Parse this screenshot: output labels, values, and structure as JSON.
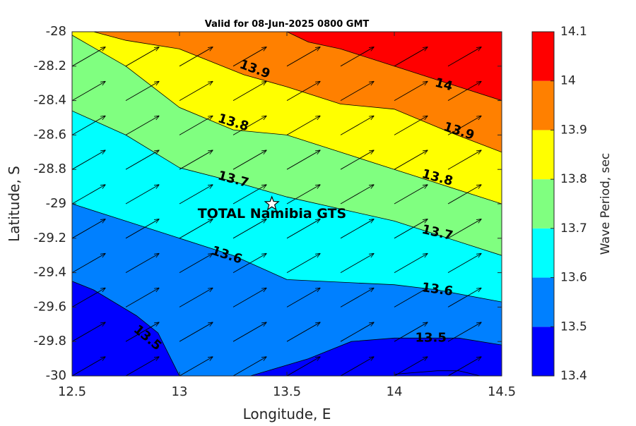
{
  "chart_data": {
    "type": "contour",
    "title": "Valid for 08-Jun-2025 0800 GMT",
    "xlabel": "Longitude, E",
    "ylabel": "Latitude, S",
    "xlim": [
      12.5,
      14.5
    ],
    "ylim": [
      -30,
      -28
    ],
    "x_ticks": [
      "12.5",
      "13",
      "13.5",
      "14",
      "14.5"
    ],
    "y_ticks": [
      "-28",
      "-28.2",
      "-28.4",
      "-28.6",
      "-28.8",
      "-29",
      "-29.2",
      "-29.4",
      "-29.6",
      "-29.8",
      "-30"
    ],
    "colorbar": {
      "label": "Wave Period, sec",
      "levels": [
        "13.4",
        "13.5",
        "13.6",
        "13.7",
        "13.8",
        "13.9",
        "14",
        "14.1"
      ],
      "colors": [
        "#0000ff",
        "#0080ff",
        "#00ffff",
        "#80ff80",
        "#ffff00",
        "#ff8000",
        "#ff0000"
      ]
    },
    "contour_lines": [
      {
        "level": 13.5,
        "points": [
          [
            12.5,
            -29.45
          ],
          [
            12.6,
            -29.5
          ],
          [
            12.8,
            -29.65
          ],
          [
            12.9,
            -29.75
          ],
          [
            13.0,
            -30.0
          ]
        ]
      },
      {
        "level": 13.5,
        "points": [
          [
            13.33,
            -30.0
          ],
          [
            13.6,
            -29.9
          ],
          [
            13.8,
            -29.8
          ],
          [
            14.0,
            -29.78
          ],
          [
            14.3,
            -29.78
          ],
          [
            14.5,
            -29.82
          ]
        ]
      },
      {
        "level": 13.6,
        "points": [
          [
            12.5,
            -29.0
          ],
          [
            12.75,
            -29.1
          ],
          [
            13.0,
            -29.2
          ],
          [
            13.25,
            -29.3
          ],
          [
            13.5,
            -29.44
          ],
          [
            14.0,
            -29.47
          ],
          [
            14.2,
            -29.5
          ],
          [
            14.5,
            -29.57
          ]
        ]
      },
      {
        "level": 13.7,
        "points": [
          [
            12.5,
            -28.46
          ],
          [
            12.75,
            -28.6
          ],
          [
            13.0,
            -28.79
          ],
          [
            13.25,
            -28.87
          ],
          [
            13.5,
            -28.96
          ],
          [
            14.0,
            -29.1
          ],
          [
            14.25,
            -29.2
          ],
          [
            14.5,
            -29.3
          ]
        ]
      },
      {
        "level": 13.8,
        "points": [
          [
            12.5,
            -28.02
          ],
          [
            12.75,
            -28.2
          ],
          [
            13.0,
            -28.44
          ],
          [
            13.25,
            -28.57
          ],
          [
            13.5,
            -28.6
          ],
          [
            13.75,
            -28.7
          ],
          [
            14.0,
            -28.8
          ],
          [
            14.25,
            -28.9
          ],
          [
            14.5,
            -29.0
          ]
        ]
      },
      {
        "level": 13.9,
        "points": [
          [
            12.6,
            -28.0
          ],
          [
            12.75,
            -28.05
          ],
          [
            13.0,
            -28.1
          ],
          [
            13.3,
            -28.25
          ],
          [
            13.5,
            -28.32
          ],
          [
            13.75,
            -28.42
          ],
          [
            14.0,
            -28.45
          ],
          [
            14.25,
            -28.58
          ],
          [
            14.5,
            -28.7
          ]
        ]
      },
      {
        "level": 14.0,
        "points": [
          [
            13.5,
            -28.0
          ],
          [
            13.6,
            -28.06
          ],
          [
            13.75,
            -28.1
          ],
          [
            14.0,
            -28.2
          ],
          [
            14.25,
            -28.3
          ],
          [
            14.5,
            -28.4
          ]
        ]
      }
    ],
    "contour_labels": [
      {
        "text": "13.9",
        "x": 13.35,
        "y": -28.22,
        "angle": 20
      },
      {
        "text": "14",
        "x": 14.23,
        "y": -28.31,
        "angle": 15
      },
      {
        "text": "13.8",
        "x": 13.25,
        "y": -28.53,
        "angle": 17
      },
      {
        "text": "13.9",
        "x": 14.3,
        "y": -28.58,
        "angle": 18
      },
      {
        "text": "13.7",
        "x": 13.25,
        "y": -28.86,
        "angle": 15
      },
      {
        "text": "13.8",
        "x": 14.2,
        "y": -28.85,
        "angle": 15
      },
      {
        "text": "13.7",
        "x": 14.2,
        "y": -29.17,
        "angle": 13
      },
      {
        "text": "13.6",
        "x": 13.22,
        "y": -29.3,
        "angle": 18
      },
      {
        "text": "13.6",
        "x": 14.2,
        "y": -29.5,
        "angle": 8
      },
      {
        "text": "13.5",
        "x": 12.85,
        "y": -29.78,
        "angle": 40
      },
      {
        "text": "13.5",
        "x": 14.17,
        "y": -29.78,
        "angle": 0
      }
    ],
    "vector_field": {
      "x": [
        12.5,
        12.75,
        13.0,
        13.25,
        13.5,
        13.75,
        14.0,
        14.25
      ],
      "y": [
        -28.2,
        -28.4,
        -28.6,
        -28.8,
        -29.0,
        -29.2,
        -29.4,
        -29.6,
        -29.8,
        -30.0
      ],
      "direction_deg": 30
    },
    "annotation": {
      "text": "TOTAL Namibia GTS",
      "marker": "star",
      "x": 13.43,
      "y": -29.0
    }
  }
}
